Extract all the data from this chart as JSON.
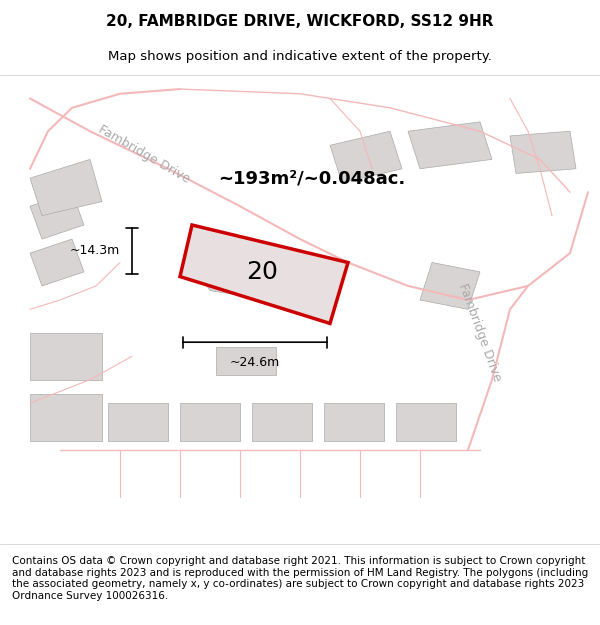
{
  "title_line1": "20, FAMBRIDGE DRIVE, WICKFORD, SS12 9HR",
  "title_line2": "Map shows position and indicative extent of the property.",
  "footer_text": "Contains OS data © Crown copyright and database right 2021. This information is subject to Crown copyright and database rights 2023 and is reproduced with the permission of HM Land Registry. The polygons (including the associated geometry, namely x, y co-ordinates) are subject to Crown copyright and database rights 2023 Ordnance Survey 100026316.",
  "area_label": "~193m²/~0.048ac.",
  "number_label": "20",
  "dim_height": "~14.3m",
  "dim_width": "~24.6m",
  "bg_color": "#f5f5f5",
  "map_bg": "#f0eeee",
  "road_color": "#f5b8b8",
  "plot_fill": "#e8e4e4",
  "plot_outline": "#cc0000",
  "building_fill": "#d8d4d4",
  "building_outline": "#aaaaaa",
  "street_label1": "Fambridge Drive",
  "street_label2": "Fambridge Drive",
  "title_fontsize": 11,
  "subtitle_fontsize": 9.5,
  "footer_fontsize": 7.5
}
